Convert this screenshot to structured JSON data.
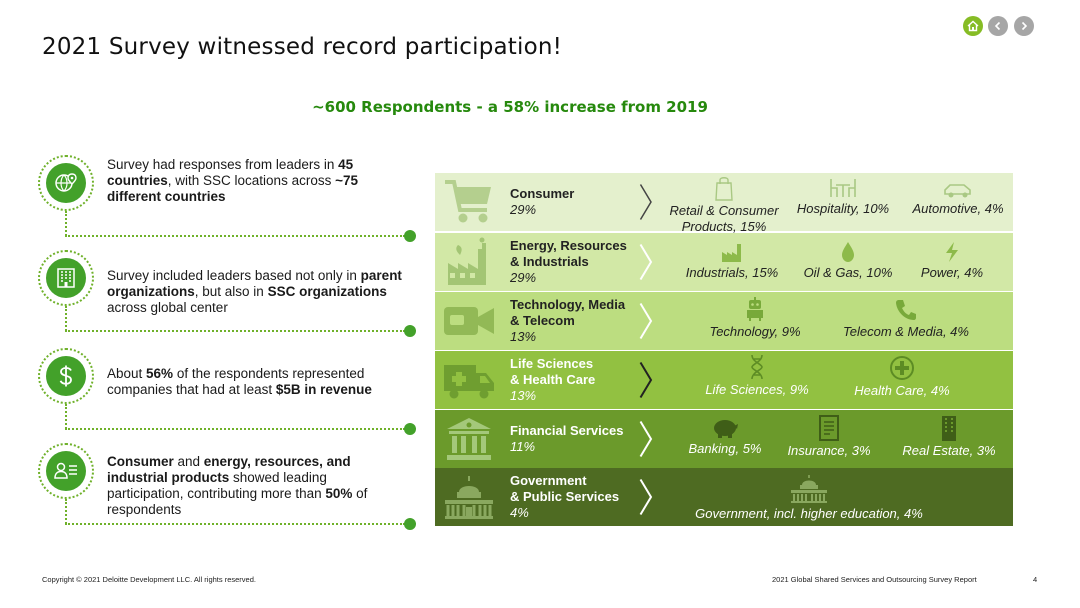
{
  "title": "2021 Survey witnessed record participation!",
  "subtitle": "~600 Respondents - a 58% increase from 2019",
  "nav": {
    "home_icon": "home-icon",
    "prev_icon": "chevron-left-icon",
    "next_icon": "chevron-right-icon"
  },
  "bullets": [
    {
      "icon": "globe-pin-icon",
      "parts": [
        "Survey had responses from leaders in ",
        "45 countries",
        ", with SSC locations across ",
        "~75 different countries",
        ""
      ]
    },
    {
      "icon": "building-icon",
      "parts": [
        "Survey included leaders based not only in ",
        "parent organizations",
        ", but also in ",
        "SSC organizations",
        " across global center"
      ]
    },
    {
      "icon": "dollar-icon",
      "parts": [
        "About ",
        "56%",
        " of the respondents represented companies that had at least ",
        "$5B in revenue",
        ""
      ]
    },
    {
      "icon": "people-list-icon",
      "parts": [
        "",
        "Consumer",
        " and ",
        "energy, resources, and industrial products",
        " showed leading participation, contributing more than ",
        "50%",
        " of respondents"
      ]
    }
  ],
  "sectors": [
    {
      "name_lines": [
        "Consumer"
      ],
      "pct": "29%",
      "icon": "shopping-cart-icon",
      "bg": "#e4f0cd",
      "fg": "#222222",
      "subs": [
        {
          "label": "Retail & Consumer Products, 15%",
          "icon": "shopping-bag-icon"
        },
        {
          "label": "Hospitality, 10%",
          "icon": "dining-icon"
        },
        {
          "label": "Automotive, 4%",
          "icon": "car-icon"
        }
      ]
    },
    {
      "name_lines": [
        "Energy, Resources",
        "& Industrials"
      ],
      "pct": "29%",
      "icon": "factory-icon",
      "bg": "#d2e8a6",
      "fg": "#222222",
      "subs": [
        {
          "label": "Industrials, 15%",
          "icon": "factory-small-icon"
        },
        {
          "label": "Oil & Gas, 10%",
          "icon": "oil-drop-icon"
        },
        {
          "label": "Power, 4%",
          "icon": "lightning-icon"
        }
      ]
    },
    {
      "name_lines": [
        "Technology, Media",
        "& Telecom"
      ],
      "pct": "13%",
      "icon": "video-camera-icon",
      "bg": "#bcdd80",
      "fg": "#222222",
      "subs": [
        {
          "label": "Technology, 9%",
          "icon": "robot-icon"
        },
        {
          "label": "Telecom & Media, 4%",
          "icon": "phone-icon"
        }
      ]
    },
    {
      "name_lines": [
        "Life Sciences",
        "& Health Care"
      ],
      "pct": "13%",
      "icon": "ambulance-icon",
      "bg": "#92c141",
      "fg": "#ffffff",
      "subs": [
        {
          "label": "Life Sciences, 9%",
          "icon": "dna-icon"
        },
        {
          "label": "Health Care, 4%",
          "icon": "medical-cross-icon"
        }
      ]
    },
    {
      "name_lines": [
        "Financial Services"
      ],
      "pct": "11%",
      "icon": "bank-icon",
      "bg": "#6b9a2b",
      "fg": "#ffffff",
      "subs": [
        {
          "label": "Banking, 5%",
          "icon": "piggy-bank-icon"
        },
        {
          "label": "Insurance, 3%",
          "icon": "document-icon"
        },
        {
          "label": "Real Estate, 3%",
          "icon": "skyscraper-icon"
        }
      ]
    },
    {
      "name_lines": [
        "Government",
        "& Public Services"
      ],
      "pct": "4%",
      "icon": "capitol-icon",
      "bg": "#4e6b22",
      "fg": "#ffffff",
      "subs": [
        {
          "label": "Government, incl. higher education, 4%",
          "icon": "capitol-small-icon"
        }
      ]
    }
  ],
  "footer": {
    "copyright": "Copyright © 2021 Deloitte Development LLC. All rights reserved.",
    "report": "2021 Global Shared Services and Outsourcing Survey Report",
    "page": "4"
  },
  "colors": {
    "accent": "#86bc25",
    "dark_green": "#26890d",
    "bullet_green": "#43a12a"
  }
}
